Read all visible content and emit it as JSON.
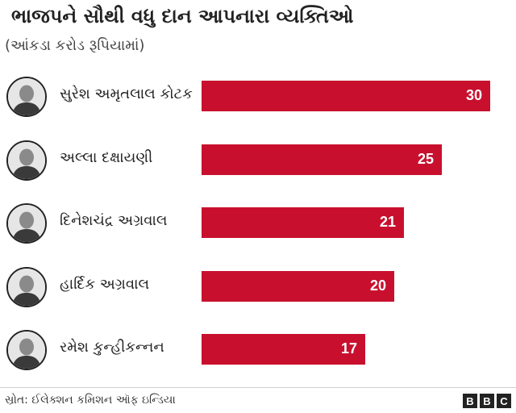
{
  "chart_data": {
    "type": "bar",
    "orientation": "horizontal",
    "title": "ભાજપને સૌથી વધુ દાન આપનારા વ્યક્તિઓ",
    "subtitle": "(આંકડા કરોડ રૂપિયામાં)",
    "categories": [
      "સુરેશ અમૃતલાલ કોટક",
      "અલ્લા દક્ષાયણી",
      "દિનેશચંદ્ર અગ્રવાલ",
      "હાર્દિક અગ્રવાલ",
      "રમેશ કુન્હીકન્નન"
    ],
    "values": [
      30,
      25,
      21,
      20,
      17
    ],
    "value_labels": [
      "30",
      "25",
      "21",
      "20",
      "17"
    ],
    "xlim": [
      0,
      30
    ],
    "bar_color": "#c8102e",
    "grid": false,
    "legend": "none"
  },
  "footer": {
    "source": "સ્રોત: ઈલેક્શન કમિશન ઑફ ઇન્ડિયા",
    "logo_letters": [
      "B",
      "B",
      "C"
    ]
  },
  "icons": {
    "avatar": "person-portrait-icon"
  }
}
